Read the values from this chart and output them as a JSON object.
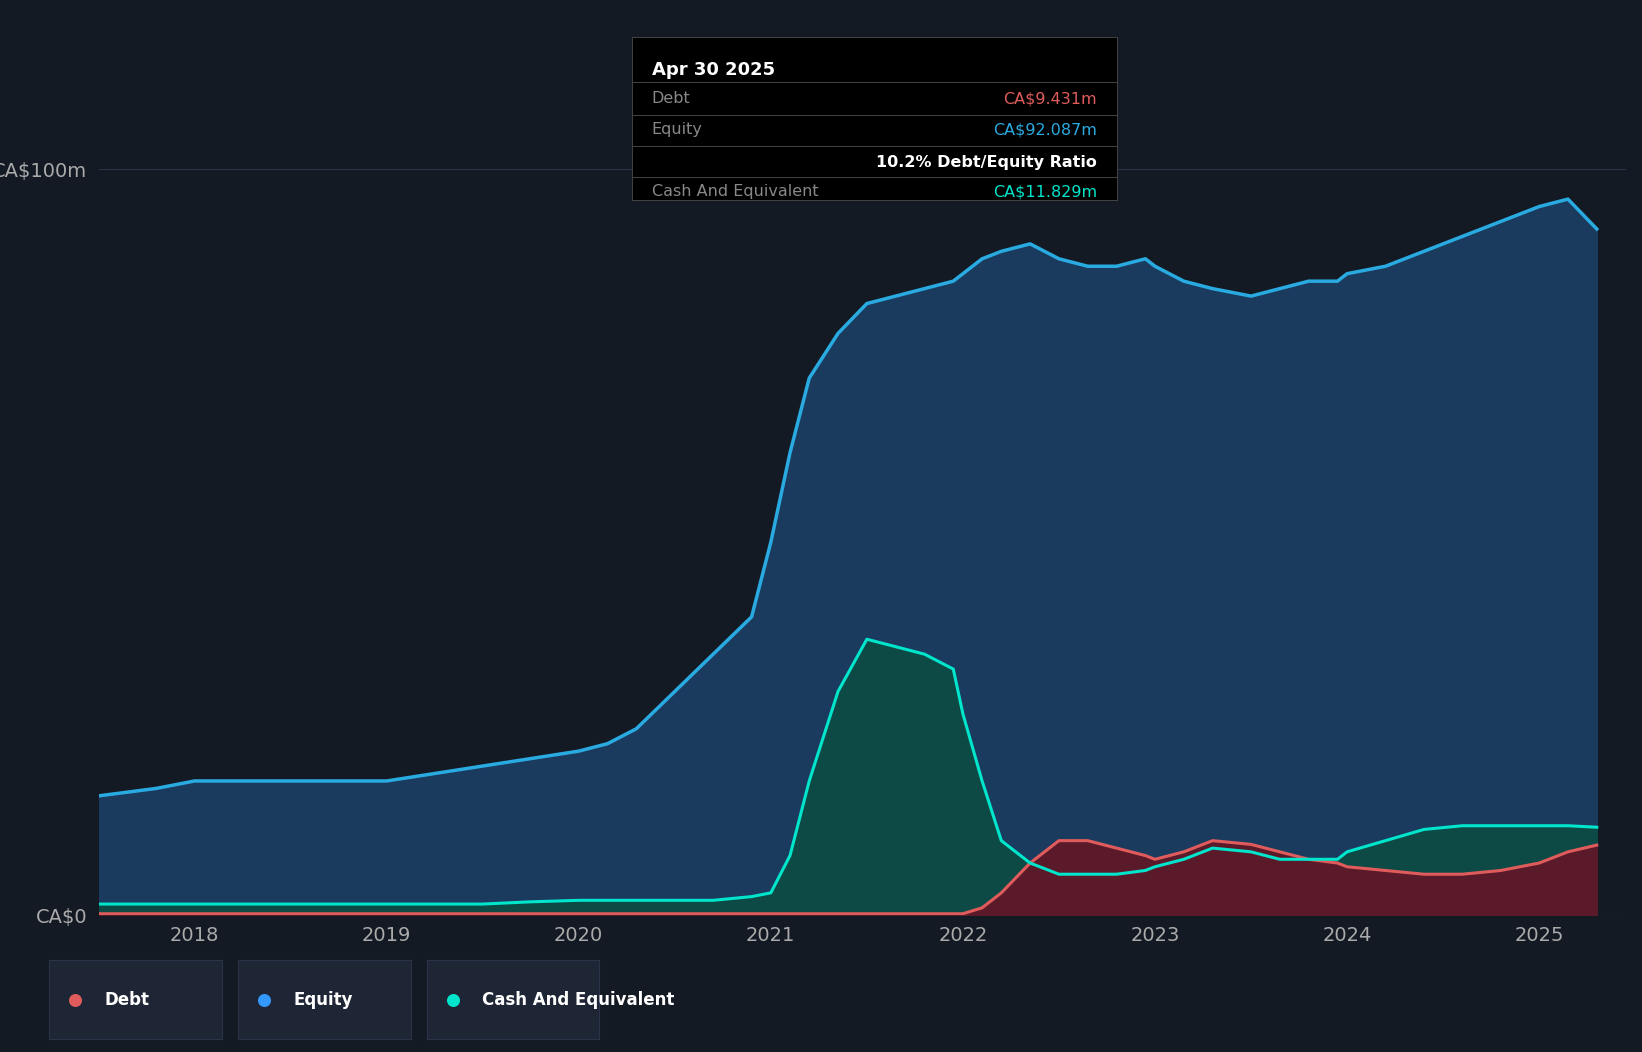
{
  "bg_color": "#141a24",
  "plot_bg_color": "#141a24",
  "grid_color": "#2a3348",
  "title_label": "CA$100m",
  "zero_label": "CA$0",
  "ylabel_color": "#aaaaaa",
  "years_ticks": [
    2018,
    2019,
    2020,
    2021,
    2022,
    2023,
    2024,
    2025
  ],
  "equity_color": "#29abe2",
  "equity_fill": "#1a3a5e",
  "debt_color": "#e05c5c",
  "debt_fill": "#5a1a2a",
  "cash_color": "#00e5cc",
  "cash_fill": "#0d4a45",
  "tooltip_bg": "#000000",
  "tooltip_title": "Apr 30 2025",
  "tooltip_debt_label": "Debt",
  "tooltip_debt_value": "CA$9.431m",
  "tooltip_equity_label": "Equity",
  "tooltip_equity_value": "CA$92.087m",
  "tooltip_ratio": "10.2% Debt/Equity Ratio",
  "tooltip_cash_label": "Cash And Equivalent",
  "tooltip_cash_value": "CA$11.829m",
  "legend_debt": "Debt",
  "legend_equity": "Equity",
  "legend_cash": "Cash And Equivalent",
  "legend_dot_debt": "#e05c5c",
  "legend_dot_equity": "#3399ff",
  "legend_dot_cash": "#00e5cc",
  "time_points": [
    2017.5,
    2017.65,
    2017.8,
    2018.0,
    2018.25,
    2018.5,
    2018.75,
    2019.0,
    2019.25,
    2019.5,
    2019.75,
    2020.0,
    2020.15,
    2020.3,
    2020.5,
    2020.7,
    2020.9,
    2021.0,
    2021.1,
    2021.2,
    2021.35,
    2021.5,
    2021.65,
    2021.8,
    2021.95,
    2022.0,
    2022.1,
    2022.2,
    2022.35,
    2022.5,
    2022.65,
    2022.8,
    2022.95,
    2023.0,
    2023.15,
    2023.3,
    2023.5,
    2023.65,
    2023.8,
    2023.95,
    2024.0,
    2024.2,
    2024.4,
    2024.6,
    2024.8,
    2025.0,
    2025.15,
    2025.3
  ],
  "equity_values": [
    16,
    16.5,
    17,
    18,
    18,
    18,
    18,
    18,
    19,
    20,
    21,
    22,
    23,
    25,
    30,
    35,
    40,
    50,
    62,
    72,
    78,
    82,
    83,
    84,
    85,
    86,
    88,
    89,
    90,
    88,
    87,
    87,
    88,
    87,
    85,
    84,
    83,
    84,
    85,
    85,
    86,
    87,
    89,
    91,
    93,
    95,
    96,
    92
  ],
  "debt_values": [
    0.2,
    0.2,
    0.2,
    0.2,
    0.2,
    0.2,
    0.2,
    0.2,
    0.2,
    0.2,
    0.2,
    0.2,
    0.2,
    0.2,
    0.2,
    0.2,
    0.2,
    0.2,
    0.2,
    0.2,
    0.2,
    0.2,
    0.2,
    0.2,
    0.2,
    0.2,
    1.0,
    3.0,
    7.0,
    10,
    10,
    9,
    8,
    7.5,
    8.5,
    10,
    9.5,
    8.5,
    7.5,
    7.0,
    6.5,
    6.0,
    5.5,
    5.5,
    6.0,
    7.0,
    8.5,
    9.4
  ],
  "cash_values": [
    1.5,
    1.5,
    1.5,
    1.5,
    1.5,
    1.5,
    1.5,
    1.5,
    1.5,
    1.5,
    1.8,
    2.0,
    2.0,
    2.0,
    2.0,
    2.0,
    2.5,
    3,
    8,
    18,
    30,
    37,
    36,
    35,
    33,
    27,
    18,
    10,
    7,
    5.5,
    5.5,
    5.5,
    6,
    6.5,
    7.5,
    9,
    8.5,
    7.5,
    7.5,
    7.5,
    8.5,
    10,
    11.5,
    12,
    12,
    12,
    12,
    11.8
  ],
  "ylim": [
    0,
    110
  ]
}
